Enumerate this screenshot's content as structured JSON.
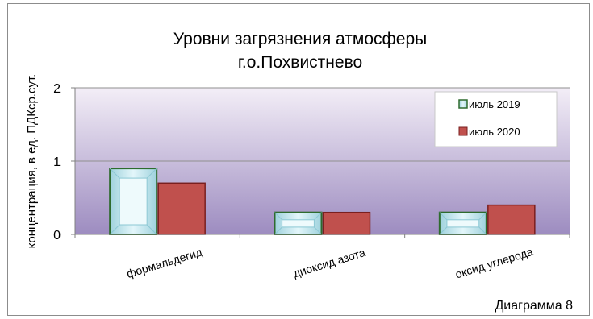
{
  "chart_data": {
    "type": "bar",
    "title_lines": [
      "Уровни загрязнения атмосферы",
      "г.о.Похвистнево"
    ],
    "ylabel": "концентрация, в ед. ПДКср.сут.",
    "xlabel": "",
    "categories": [
      "формальдегид",
      "диоксид азота",
      "оксид углерода"
    ],
    "series": [
      {
        "name": "июль 2019",
        "values": [
          0.9,
          0.3,
          0.3
        ]
      },
      {
        "name": "июль 2020",
        "values": [
          0.7,
          0.3,
          0.4
        ]
      }
    ],
    "ylim": [
      0,
      2
    ],
    "yticks": [
      0,
      1,
      2
    ],
    "grid": true,
    "legend": "top-right",
    "colors": {
      "series1": "#bfe6ee",
      "series1_border": "#2e6b2e",
      "series2": "#c0504d",
      "series2_border": "#7a1f1f"
    }
  },
  "caption": "Диаграмма 8"
}
